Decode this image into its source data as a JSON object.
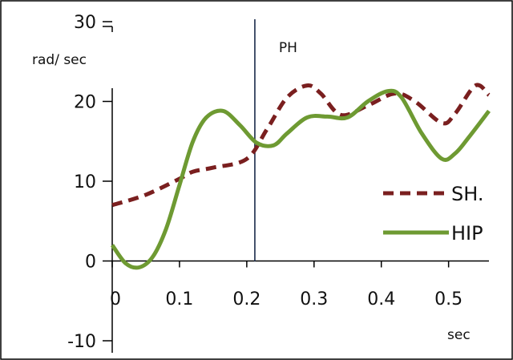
{
  "chart_data": {
    "type": "line",
    "title": "",
    "xlabel": "sec",
    "ylabel": "rad/ sec",
    "xlim": [
      0,
      0.56
    ],
    "ylim": [
      -10,
      30
    ],
    "xticks": [
      "0",
      "0.1",
      "0.2",
      "0.3",
      "0.4",
      "0.5"
    ],
    "yticks": [
      "-10",
      "0",
      "10",
      "20",
      "30"
    ],
    "grid": false,
    "legend_position": "right",
    "annotation": {
      "text": "PH",
      "x": 0.212
    },
    "series": [
      {
        "name": "SH.",
        "style": "dashed",
        "color": "#7a1f1f",
        "x": [
          0,
          0.05,
          0.1,
          0.12,
          0.15,
          0.2,
          0.23,
          0.26,
          0.29,
          0.31,
          0.34,
          0.38,
          0.42,
          0.45,
          0.49,
          0.51,
          0.54,
          0.56
        ],
        "y": [
          7,
          8.3,
          10.3,
          11.2,
          11.7,
          12.8,
          16.5,
          20.5,
          22,
          21,
          18.3,
          19.5,
          21,
          20,
          17.3,
          18.5,
          22,
          20.8
        ]
      },
      {
        "name": "HIP",
        "style": "solid",
        "color": "#6e9a32",
        "x": [
          0,
          0.02,
          0.04,
          0.06,
          0.08,
          0.1,
          0.12,
          0.14,
          0.165,
          0.19,
          0.215,
          0.24,
          0.26,
          0.29,
          0.32,
          0.35,
          0.38,
          0.41,
          0.43,
          0.46,
          0.49,
          0.51,
          0.53,
          0.56
        ],
        "y": [
          2,
          -0.3,
          -0.8,
          0.5,
          4,
          9.5,
          15,
          18,
          18.8,
          17,
          14.8,
          14.5,
          16,
          18,
          18.1,
          18,
          20,
          21.3,
          20.5,
          16,
          12.8,
          13.5,
          15.5,
          18.8
        ]
      }
    ]
  }
}
